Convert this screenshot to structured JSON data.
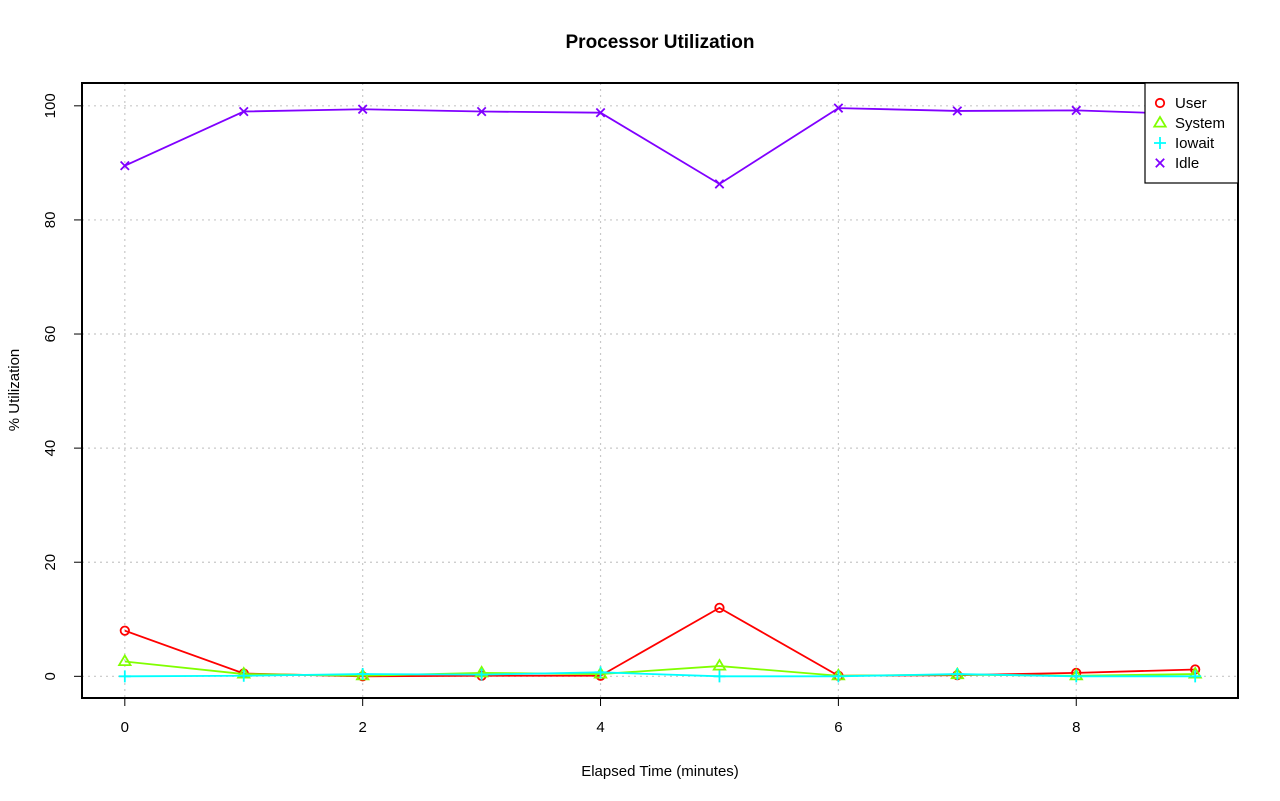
{
  "chart_data": {
    "type": "line",
    "title": "Processor Utilization",
    "xlabel": "Elapsed Time (minutes)",
    "ylabel": "% Utilization",
    "x": [
      0,
      1,
      2,
      3,
      4,
      5,
      6,
      7,
      8,
      9
    ],
    "xlim": [
      -0.36,
      9.36
    ],
    "ylim": [
      -3.8,
      104.0
    ],
    "x_ticks": [
      0,
      2,
      4,
      6,
      8
    ],
    "y_ticks": [
      0,
      20,
      40,
      60,
      80,
      100
    ],
    "grid": true,
    "legend_position": "top-right",
    "series": [
      {
        "name": "User",
        "color": "#ff0000",
        "marker": "circle",
        "values": [
          8.0,
          0.5,
          0.0,
          0.1,
          0.1,
          12.0,
          0.1,
          0.2,
          0.6,
          1.2
        ]
      },
      {
        "name": "System",
        "color": "#80ff00",
        "marker": "triangle",
        "values": [
          2.6,
          0.4,
          0.1,
          0.6,
          0.4,
          1.8,
          0.1,
          0.3,
          0.1,
          0.4
        ]
      },
      {
        "name": "Iowait",
        "color": "#00ffff",
        "marker": "plus",
        "values": [
          0.0,
          0.1,
          0.4,
          0.3,
          0.7,
          0.0,
          0.0,
          0.4,
          0.0,
          0.0
        ]
      },
      {
        "name": "Idle",
        "color": "#8000ff",
        "marker": "cross",
        "values": [
          89.5,
          99.0,
          99.4,
          99.0,
          98.8,
          86.3,
          99.6,
          99.1,
          99.2,
          98.5
        ]
      }
    ]
  }
}
